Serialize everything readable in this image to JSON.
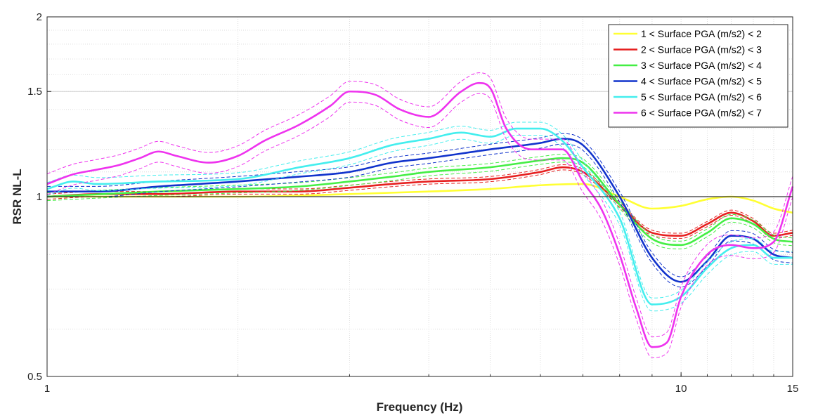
{
  "chart_data": {
    "type": "line",
    "title": "",
    "xlabel": "Frequency (Hz)",
    "ylabel": "RSR NL-L",
    "xscale": "log",
    "yscale": "log",
    "xlim": [
      1,
      15
    ],
    "ylim": [
      0.5,
      2
    ],
    "xticks": [
      1,
      10,
      15
    ],
    "xtick_labels": [
      "1",
      "10",
      "15"
    ],
    "yticks": [
      0.5,
      1,
      1.5,
      2
    ],
    "ytick_labels": [
      "0.5",
      "1",
      "1.5",
      "2"
    ],
    "grid": true,
    "reference_line": 1,
    "legend_position": "top-right",
    "series": [
      {
        "name": "1 < Surface PGA (m/s2) < 2",
        "color": "#ffff33",
        "x": [
          1,
          1.5,
          2,
          3,
          4,
          5,
          6,
          7,
          8,
          9,
          10,
          11,
          12,
          13,
          14,
          15
        ],
        "y": [
          1.0,
          1.0,
          1.0,
          1.01,
          1.02,
          1.03,
          1.045,
          1.05,
          1.0,
          0.955,
          0.965,
          0.99,
          1.0,
          0.985,
          0.955,
          0.94
        ],
        "band": 0
      },
      {
        "name": "2 < Surface PGA (m/s2) < 3",
        "color": "#e62020",
        "x": [
          1,
          1.2,
          1.5,
          2,
          2.5,
          3,
          3.5,
          4,
          5,
          6,
          6.5,
          7,
          8,
          9,
          10,
          11,
          12,
          13,
          14,
          15
        ],
        "y": [
          1.0,
          1.01,
          1.01,
          1.02,
          1.02,
          1.035,
          1.05,
          1.06,
          1.07,
          1.1,
          1.12,
          1.1,
          0.97,
          0.87,
          0.86,
          0.9,
          0.94,
          0.91,
          0.86,
          0.87
        ],
        "band": 0.01
      },
      {
        "name": "3 < Surface PGA (m/s2) < 4",
        "color": "#44ee44",
        "x": [
          1,
          1.5,
          2,
          2.5,
          3,
          3.5,
          4,
          5,
          6,
          6.5,
          7,
          8,
          9,
          10,
          11,
          12,
          13,
          14,
          15
        ],
        "y": [
          1.0,
          1.02,
          1.03,
          1.04,
          1.06,
          1.08,
          1.1,
          1.12,
          1.15,
          1.16,
          1.14,
          0.97,
          0.85,
          0.83,
          0.87,
          0.92,
          0.9,
          0.85,
          0.84
        ],
        "band": 0.015
      },
      {
        "name": "4 < Surface PGA (m/s2) < 5",
        "color": "#1133cc",
        "x": [
          1,
          1.2,
          1.5,
          2,
          2.5,
          3,
          3.5,
          4,
          5,
          6,
          6.5,
          7,
          8,
          9,
          10,
          11,
          12,
          13,
          14,
          15
        ],
        "y": [
          1.02,
          1.02,
          1.04,
          1.06,
          1.08,
          1.1,
          1.14,
          1.16,
          1.2,
          1.23,
          1.25,
          1.22,
          1.0,
          0.79,
          0.72,
          0.78,
          0.86,
          0.85,
          0.8,
          0.79
        ],
        "band": 0.02
      },
      {
        "name": "5 < Surface PGA (m/s2) < 6",
        "color": "#44eeee",
        "x": [
          1,
          1.1,
          1.2,
          1.5,
          2,
          2.5,
          3,
          3.5,
          4,
          4.5,
          5,
          5.5,
          6,
          6.5,
          7,
          8,
          9,
          10,
          11,
          12,
          13,
          14,
          15
        ],
        "y": [
          1.03,
          1.06,
          1.05,
          1.06,
          1.07,
          1.12,
          1.16,
          1.22,
          1.25,
          1.28,
          1.26,
          1.3,
          1.3,
          1.24,
          1.12,
          0.92,
          0.66,
          0.68,
          0.76,
          0.82,
          0.83,
          0.79,
          0.79
        ],
        "band": 0.025
      },
      {
        "name": "6 < Surface PGA (m/s2) < 7",
        "color": "#ee33ee",
        "x": [
          1,
          1.1,
          1.2,
          1.3,
          1.4,
          1.5,
          1.6,
          1.8,
          2,
          2.2,
          2.5,
          2.8,
          3,
          3.3,
          3.6,
          4,
          4.5,
          4.8,
          5,
          5.3,
          5.8,
          6.5,
          7,
          7.5,
          8,
          8.5,
          9,
          9.5,
          10,
          11,
          12,
          13,
          14,
          15
        ],
        "y": [
          1.05,
          1.09,
          1.11,
          1.13,
          1.16,
          1.19,
          1.17,
          1.14,
          1.17,
          1.24,
          1.32,
          1.42,
          1.5,
          1.48,
          1.4,
          1.36,
          1.5,
          1.55,
          1.52,
          1.3,
          1.2,
          1.2,
          1.06,
          0.95,
          0.8,
          0.65,
          0.56,
          0.57,
          0.68,
          0.8,
          0.83,
          0.82,
          0.84,
          1.04
        ],
        "band": 0.04
      }
    ]
  }
}
